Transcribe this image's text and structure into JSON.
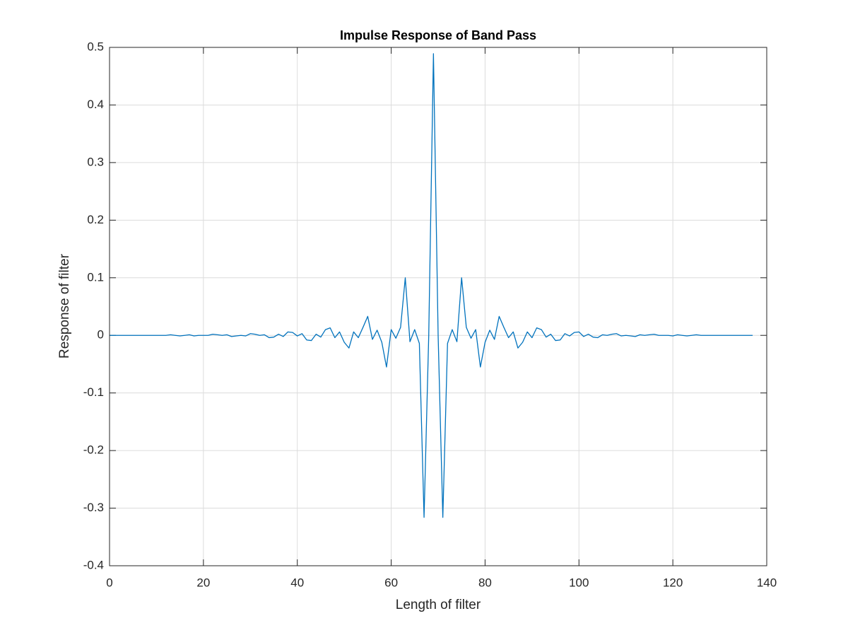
{
  "chart_data": {
    "type": "line",
    "title": "Impulse Response of Band Pass",
    "xlabel": "Length of filter",
    "ylabel": "Response of filter",
    "color": "#0072bd",
    "grid": true,
    "x": [
      0,
      1,
      2,
      3,
      4,
      5,
      6,
      7,
      8,
      9,
      10,
      11,
      12,
      13,
      14,
      15,
      16,
      17,
      18,
      19,
      20,
      21,
      22,
      23,
      24,
      25,
      26,
      27,
      28,
      29,
      30,
      31,
      32,
      33,
      34,
      35,
      36,
      37,
      38,
      39,
      40,
      41,
      42,
      43,
      44,
      45,
      46,
      47,
      48,
      49,
      50,
      51,
      52,
      53,
      54,
      55,
      56,
      57,
      58,
      59,
      60,
      61,
      62,
      63,
      64,
      65,
      66,
      67,
      68,
      69,
      70,
      71,
      72,
      73,
      74,
      75,
      76,
      77,
      78,
      79,
      80,
      81,
      82,
      83,
      84,
      85,
      86,
      87,
      88,
      89,
      90,
      91,
      92,
      93,
      94,
      95,
      96,
      97,
      98,
      99,
      100,
      101,
      102,
      103,
      104,
      105,
      106,
      107,
      108,
      109,
      110,
      111,
      112,
      113,
      114,
      115,
      116,
      117,
      118,
      119,
      120,
      121,
      122,
      123,
      124,
      125,
      126,
      127,
      128,
      129,
      130,
      131,
      132,
      133,
      134,
      135,
      136,
      137
    ],
    "values": [
      0,
      0,
      0,
      0,
      0,
      0,
      0,
      0,
      0,
      0,
      0,
      0,
      0,
      0.001,
      0,
      -0.001,
      0,
      0.001,
      -0.001,
      0,
      0,
      0,
      0.002,
      0.001,
      0,
      0.001,
      -0.002,
      -0.001,
      0,
      -0.001,
      0.003,
      0.002,
      0,
      0.001,
      -0.004,
      -0.003,
      0.002,
      -0.002,
      0.006,
      0.005,
      -0.001,
      0.003,
      -0.008,
      -0.009,
      0.002,
      -0.003,
      0.01,
      0.013,
      -0.004,
      0.006,
      -0.012,
      -0.022,
      0.006,
      -0.004,
      0.014,
      0.033,
      -0.007,
      0.009,
      -0.012,
      -0.055,
      0.01,
      -0.005,
      0.014,
      0.1,
      -0.011,
      0.01,
      -0.014,
      -0.316,
      0,
      0.489,
      0,
      -0.316,
      -0.014,
      0.01,
      -0.011,
      0.1,
      0.014,
      -0.005,
      0.01,
      -0.055,
      -0.012,
      0.009,
      -0.007,
      0.033,
      0.014,
      -0.004,
      0.006,
      -0.022,
      -0.012,
      0.006,
      -0.004,
      0.013,
      0.01,
      -0.003,
      0.002,
      -0.009,
      -0.008,
      0.003,
      -0.001,
      0.005,
      0.006,
      -0.002,
      0.002,
      -0.003,
      -0.004,
      0.001,
      0,
      0.002,
      0.003,
      -0.001,
      0,
      -0.001,
      -0.002,
      0.001,
      0,
      0.001,
      0.002,
      0,
      0,
      0,
      -0.001,
      0.001,
      0,
      -0.001,
      0,
      0.001,
      0,
      0,
      0,
      0,
      0,
      0,
      0,
      0,
      0,
      0,
      0,
      0
    ],
    "xlim": [
      0,
      140
    ],
    "xticks": [
      0,
      20,
      40,
      60,
      80,
      100,
      120,
      140
    ],
    "ylim": [
      -0.4,
      0.5
    ],
    "yticks": [
      -0.4,
      -0.3,
      -0.2,
      -0.1,
      0,
      0.1,
      0.2,
      0.3,
      0.4,
      0.5
    ]
  }
}
